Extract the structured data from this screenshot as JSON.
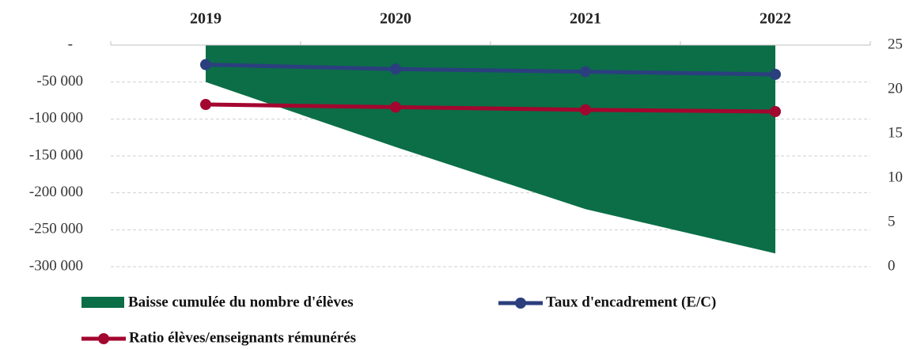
{
  "chart_data": {
    "type": "combo",
    "categories": [
      "2019",
      "2020",
      "2021",
      "2022"
    ],
    "ylim": [
      -300000,
      0
    ],
    "yticks": [
      {
        "value": 0,
        "label": "-"
      },
      {
        "value": -50000,
        "label": "-50 000"
      },
      {
        "value": -100000,
        "label": "-100 000"
      },
      {
        "value": -150000,
        "label": "-150 000"
      },
      {
        "value": -200000,
        "label": "-200 000"
      },
      {
        "value": -250000,
        "label": "-250 000"
      },
      {
        "value": -300000,
        "label": "-300 000"
      }
    ],
    "y2lim": [
      0,
      25
    ],
    "y2ticks": [
      0,
      5,
      10,
      15,
      20,
      25
    ],
    "grid": true,
    "legend": "bottom",
    "series": [
      {
        "name": "Baisse cumulée du nombre d'élèves",
        "type": "area",
        "color": "#0b6e47",
        "values": [
          -50000,
          -138000,
          -222000,
          -282000
        ]
      },
      {
        "name": "Taux d'encadrement (E/C)",
        "type": "line",
        "axis": "y2",
        "color": "#2b3f7e",
        "values": [
          22.8,
          22.3,
          22.0,
          21.7
        ]
      },
      {
        "name": "Ratio élèves/enseignants rémunérés",
        "type": "line",
        "axis": "y2",
        "color": "#a3062f",
        "values": [
          18.3,
          18.0,
          17.7,
          17.5
        ]
      }
    ]
  }
}
